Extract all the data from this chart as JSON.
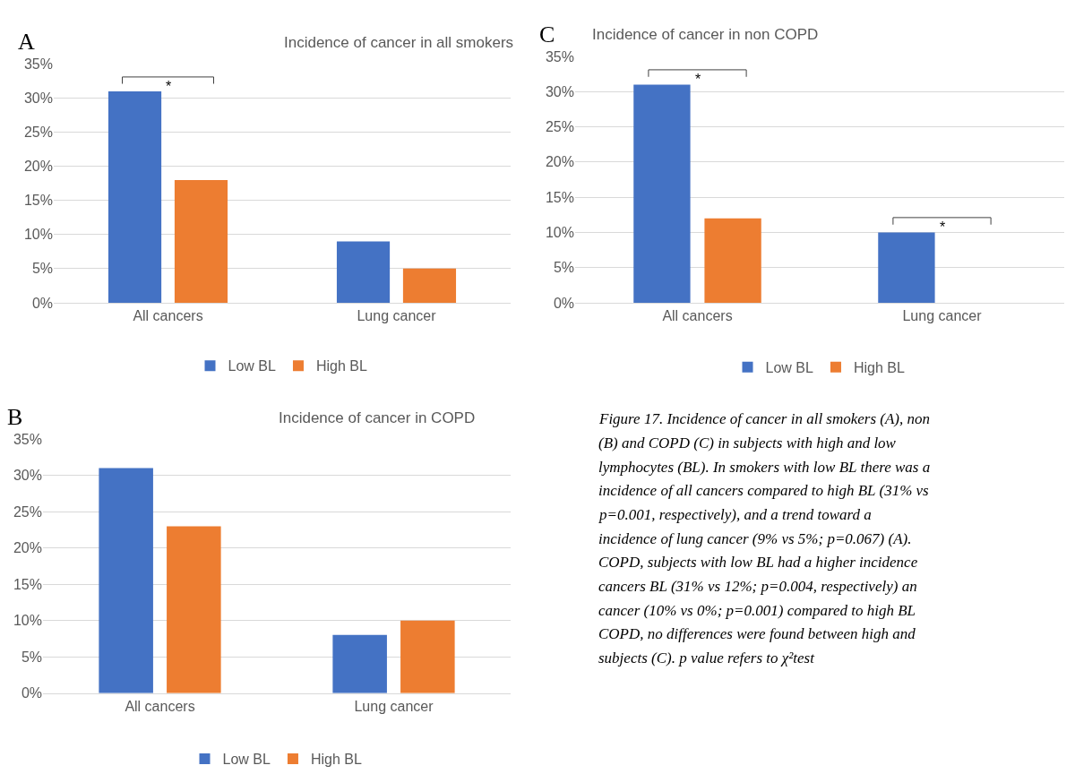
{
  "chart_data": [
    {
      "type": "bar",
      "title": "Incidence of cancer in all smokers",
      "categories": [
        "All cancers",
        "Lung cancer"
      ],
      "series": [
        {
          "name": "Low BL",
          "color": "#4472c4",
          "values": [
            31,
            9
          ]
        },
        {
          "name": "High BL",
          "color": "#ed7d31",
          "values": [
            18,
            5
          ]
        }
      ],
      "ylim": [
        0,
        35
      ],
      "yticks": [
        {
          "value": 0,
          "label": "0%"
        },
        {
          "value": 5,
          "label": "5%"
        },
        {
          "value": 10,
          "label": "10%"
        },
        {
          "value": 15,
          "label": "15%"
        },
        {
          "value": 20,
          "label": "20%"
        },
        {
          "value": 25,
          "label": "25%"
        },
        {
          "value": 30,
          "label": "30%"
        },
        {
          "value": 35,
          "label": "35%"
        }
      ],
      "grid": "y",
      "legend": "bottom",
      "annotations": [
        "A",
        "*"
      ]
    },
    {
      "type": "bar",
      "title": "Incidence of cancer in non COPD",
      "categories": [
        "All cancers",
        "Lung cancer"
      ],
      "series": [
        {
          "name": "Low BL",
          "color": "#4472c4",
          "values": [
            31,
            10
          ]
        },
        {
          "name": "High BL",
          "color": "#ed7d31",
          "values": [
            12,
            0
          ]
        }
      ],
      "ylim": [
        0,
        35
      ],
      "yticks": [
        {
          "value": 0,
          "label": "0%"
        },
        {
          "value": 5,
          "label": "5%"
        },
        {
          "value": 10,
          "label": "10%"
        },
        {
          "value": 15,
          "label": "15%"
        },
        {
          "value": 20,
          "label": "20%"
        },
        {
          "value": 25,
          "label": "25%"
        },
        {
          "value": 30,
          "label": "30%"
        },
        {
          "value": 35,
          "label": "35%"
        }
      ],
      "grid": "y",
      "legend": "bottom",
      "annotations": [
        "C",
        "*",
        "*"
      ]
    },
    {
      "type": "bar",
      "title": "Incidence of cancer in COPD",
      "categories": [
        "All cancers",
        "Lung cancer"
      ],
      "series": [
        {
          "name": "Low BL",
          "color": "#4472c4",
          "values": [
            31,
            8
          ]
        },
        {
          "name": "High BL",
          "color": "#ed7d31",
          "values": [
            23,
            10
          ]
        }
      ],
      "ylim": [
        0,
        35
      ],
      "yticks": [
        {
          "value": 0,
          "label": "0%"
        },
        {
          "value": 5,
          "label": "5%"
        },
        {
          "value": 10,
          "label": "10%"
        },
        {
          "value": 15,
          "label": "15%"
        },
        {
          "value": 20,
          "label": "20%"
        },
        {
          "value": 25,
          "label": "25%"
        },
        {
          "value": 30,
          "label": "30%"
        },
        {
          "value": 35,
          "label": "35%"
        }
      ],
      "grid": "y",
      "legend": "bottom",
      "annotations": [
        "B"
      ]
    },
    {
      "type": "other",
      "annotations": [
        "Figure 17. Incidence of cancer in all smokers (A), non",
        "(B) and COPD (C) in subjects with high and low",
        "lymphocytes (BL). In smokers with low BL there was a",
        "incidence of all cancers compared to high BL (31% vs",
        "p=0.001, respectively), and a trend toward a",
        "incidence of lung cancer (9% vs 5%; p=0.067) (A).",
        "COPD, subjects with low BL had a higher incidence",
        "cancers BL (31% vs 12%; p=0.004, respectively) an",
        "cancer (10% vs 0%; p=0.001) compared to high BL",
        "COPD, no differences were found between high and",
        "subjects (C). p value refers to χ²test"
      ]
    }
  ]
}
